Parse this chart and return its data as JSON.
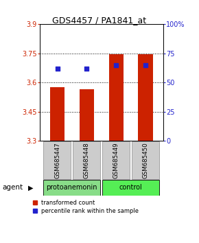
{
  "title": "GDS4457 / PA1841_at",
  "samples": [
    "GSM685447",
    "GSM685448",
    "GSM685449",
    "GSM685450"
  ],
  "bar_values": [
    3.575,
    3.565,
    3.745,
    3.745
  ],
  "bar_bottom": 3.3,
  "percentile_values": [
    62,
    62,
    65,
    65
  ],
  "bar_color": "#cc2200",
  "percentile_color": "#2222cc",
  "ylim_left": [
    3.3,
    3.9
  ],
  "ylim_right": [
    0,
    100
  ],
  "yticks_left": [
    3.3,
    3.45,
    3.6,
    3.75,
    3.9
  ],
  "yticks_right": [
    0,
    25,
    50,
    75,
    100
  ],
  "ytick_labels_left": [
    "3.3",
    "3.45",
    "3.6",
    "3.75",
    "3.9"
  ],
  "ytick_labels_right": [
    "0",
    "25",
    "50",
    "75",
    "100%"
  ],
  "groups": [
    {
      "label": "protoanemonin",
      "samples": [
        0,
        1
      ],
      "color": "#88dd88"
    },
    {
      "label": "control",
      "samples": [
        2,
        3
      ],
      "color": "#55ee55"
    }
  ],
  "agent_label": "agent",
  "legend_items": [
    {
      "color": "#cc2200",
      "label": "transformed count"
    },
    {
      "color": "#2222cc",
      "label": "percentile rank within the sample"
    }
  ],
  "background_color": "#ffffff",
  "sample_box_color": "#cccccc"
}
